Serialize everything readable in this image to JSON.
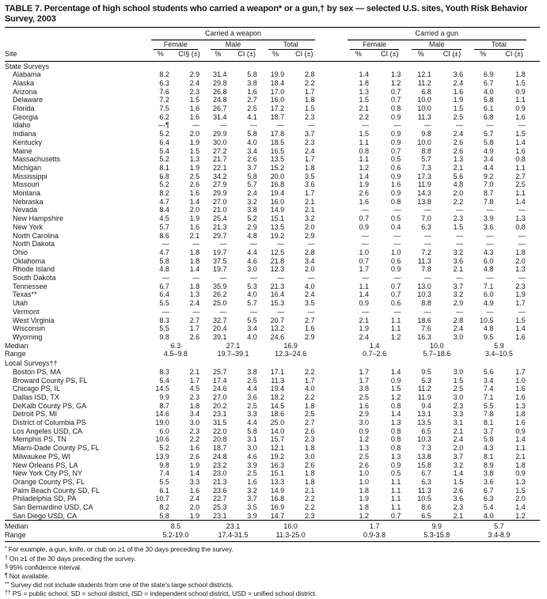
{
  "title": "TABLE 7. Percentage of high school students who carried a weapon* or a gun,† by sex — selected U.S. sites, Youth Risk Behavior Survey, 2003",
  "columns": {
    "site": "Site",
    "groups": [
      {
        "label": "Carried a weapon",
        "subs": [
          {
            "label": "Female",
            "pct": "%",
            "ci": "CI§ (±)"
          },
          {
            "label": "Male",
            "pct": "%",
            "ci": "CI (±)"
          },
          {
            "label": "Total",
            "pct": "%",
            "ci": "CI (±)"
          }
        ]
      },
      {
        "label": "Carried a gun",
        "subs": [
          {
            "label": "Female",
            "pct": "%",
            "ci": "CI (±)"
          },
          {
            "label": "Male",
            "pct": "%",
            "ci": "CI (±)"
          },
          {
            "label": "Total",
            "pct": "%",
            "ci": "CI (±)"
          }
        ]
      }
    ]
  },
  "sections": [
    {
      "label": "State Surveys",
      "divider_before_summary": false,
      "rows": [
        {
          "site": "Alabama",
          "v": [
            "8.2",
            "2.9",
            "31.4",
            "5.8",
            "19.9",
            "2.8",
            "1.4",
            "1.3",
            "12.1",
            "3.6",
            "6.9",
            "1.8"
          ]
        },
        {
          "site": "Alaska",
          "v": [
            "6.3",
            "2.4",
            "29.8",
            "3.8",
            "18.4",
            "2.2",
            "1.8",
            "1.2",
            "11.2",
            "2.4",
            "6.7",
            "1.5"
          ]
        },
        {
          "site": "Arizona",
          "v": [
            "7.6",
            "2.3",
            "26.8",
            "1.6",
            "17.0",
            "1.7",
            "1.3",
            "0.7",
            "6.8",
            "1.6",
            "4.0",
            "0.9"
          ]
        },
        {
          "site": "Delaware",
          "v": [
            "7.2",
            "1.5",
            "24.8",
            "2.7",
            "16.0",
            "1.8",
            "1.5",
            "0.7",
            "10.0",
            "1.9",
            "5.8",
            "1.1"
          ]
        },
        {
          "site": "Florida",
          "v": [
            "7.5",
            "1.6",
            "26.7",
            "2.5",
            "17.2",
            "1.5",
            "2.1",
            "0.8",
            "10.0",
            "1.5",
            "6.1",
            "0.9"
          ]
        },
        {
          "site": "Georgia",
          "v": [
            "6.2",
            "1.6",
            "31.4",
            "4.1",
            "18.7",
            "2.3",
            "2.2",
            "0.9",
            "11.3",
            "2.5",
            "6.8",
            "1.6"
          ]
        },
        {
          "site": "Idaho",
          "v": [
            "—¶",
            "—",
            "—",
            "—",
            "—",
            "—",
            "—",
            "—",
            "—",
            "—",
            "—",
            "—"
          ]
        },
        {
          "site": "Indiana",
          "v": [
            "5.2",
            "2.0",
            "29.9",
            "5.8",
            "17.8",
            "3.7",
            "1.5",
            "0.9",
            "9.8",
            "2.4",
            "5.7",
            "1.5"
          ]
        },
        {
          "site": "Kentucky",
          "v": [
            "6.4",
            "1.9",
            "30.0",
            "4.0",
            "18.5",
            "2.3",
            "1.1",
            "0.9",
            "10.0",
            "2.6",
            "5.8",
            "1.4"
          ]
        },
        {
          "site": "Maine",
          "v": [
            "5.4",
            "1.5",
            "27.2",
            "3.4",
            "16.5",
            "2.4",
            "0.8",
            "0.7",
            "8.8",
            "2.6",
            "4.9",
            "1.6"
          ]
        },
        {
          "site": "Massachusetts",
          "v": [
            "5.2",
            "1.3",
            "21.7",
            "2.6",
            "13.5",
            "1.7",
            "1.1",
            "0.5",
            "5.7",
            "1.3",
            "3.4",
            "0.8"
          ]
        },
        {
          "site": "Michigan",
          "v": [
            "8.1",
            "1.9",
            "22.1",
            "3.7",
            "15.2",
            "1.8",
            "1.2",
            "0.6",
            "7.3",
            "2.1",
            "4.4",
            "1.1"
          ]
        },
        {
          "site": "Mississippi",
          "v": [
            "6.8",
            "2.5",
            "34.2",
            "5.8",
            "20.0",
            "3.5",
            "1.4",
            "0.9",
            "17.3",
            "5.6",
            "9.2",
            "2.7"
          ]
        },
        {
          "site": "Missouri",
          "v": [
            "5.2",
            "2.6",
            "27.9",
            "5.7",
            "16.8",
            "3.6",
            "1.9",
            "1.6",
            "11.9",
            "4.8",
            "7.0",
            "2.5"
          ]
        },
        {
          "site": "Montana",
          "v": [
            "8.2",
            "1.6",
            "29.9",
            "2.4",
            "19.4",
            "1.7",
            "2.6",
            "0.9",
            "14.3",
            "2.0",
            "8.7",
            "1.1"
          ]
        },
        {
          "site": "Nebraska",
          "v": [
            "4.7",
            "1.4",
            "27.0",
            "3.2",
            "16.0",
            "2.1",
            "1.6",
            "0.8",
            "13.8",
            "2.2",
            "7.8",
            "1.4"
          ]
        },
        {
          "site": "Nevada",
          "v": [
            "8.4",
            "2.0",
            "21.0",
            "3.8",
            "14.9",
            "2.1",
            "—",
            "—",
            "—",
            "—",
            "—",
            "—"
          ]
        },
        {
          "site": "New Hampshire",
          "v": [
            "4.5",
            "1.9",
            "25.4",
            "5.2",
            "15.1",
            "3.2",
            "0.7",
            "0.5",
            "7.0",
            "2.3",
            "3.9",
            "1.3"
          ]
        },
        {
          "site": "New York",
          "v": [
            "5.7",
            "1.6",
            "21.3",
            "2.9",
            "13.5",
            "2.0",
            "0.9",
            "0.4",
            "6.3",
            "1.5",
            "3.6",
            "0.8"
          ]
        },
        {
          "site": "North Carolina",
          "v": [
            "8.6",
            "2.1",
            "29.7",
            "4.8",
            "19.2",
            "2.9",
            "—",
            "—",
            "—",
            "—",
            "—",
            "—"
          ]
        },
        {
          "site": "North Dakota",
          "v": [
            "—",
            "—",
            "—",
            "—",
            "—",
            "—",
            "—",
            "—",
            "—",
            "—",
            "—",
            "—"
          ]
        },
        {
          "site": "Ohio",
          "v": [
            "4.7",
            "1.8",
            "19.7",
            "4.4",
            "12.5",
            "2.8",
            "1.0",
            "1.0",
            "7.2",
            "3.2",
            "4.3",
            "1.8"
          ]
        },
        {
          "site": "Oklahoma",
          "v": [
            "5.8",
            "1.8",
            "37.5",
            "4.6",
            "21.8",
            "3.4",
            "0.7",
            "0.6",
            "11.3",
            "3.6",
            "6.0",
            "2.0"
          ]
        },
        {
          "site": "Rhode Island",
          "v": [
            "4.8",
            "1.4",
            "19.7",
            "3.0",
            "12.3",
            "2.0",
            "1.7",
            "0.9",
            "7.8",
            "2.1",
            "4.8",
            "1.3"
          ]
        },
        {
          "site": "South Dakota",
          "v": [
            "—",
            "—",
            "—",
            "—",
            "—",
            "—",
            "—",
            "—",
            "—",
            "—",
            "—",
            "—"
          ]
        },
        {
          "site": "Tennessee",
          "v": [
            "6.7",
            "1.8",
            "35.9",
            "5.3",
            "21.3",
            "4.0",
            "1.1",
            "0.7",
            "13.0",
            "3.7",
            "7.1",
            "2.3"
          ]
        },
        {
          "site": "Texas**",
          "v": [
            "6.4",
            "1.3",
            "26.2",
            "4.0",
            "16.4",
            "2.4",
            "1.4",
            "0.7",
            "10.3",
            "3.2",
            "6.0",
            "1.9"
          ]
        },
        {
          "site": "Utah",
          "v": [
            "5.5",
            "2.4",
            "25.0",
            "5.7",
            "15.3",
            "3.5",
            "0.9",
            "0.6",
            "8.8",
            "2.9",
            "4.9",
            "1.7"
          ]
        },
        {
          "site": "Vermont",
          "v": [
            "—",
            "—",
            "—",
            "—",
            "—",
            "—",
            "—",
            "—",
            "—",
            "—",
            "—",
            "—"
          ]
        },
        {
          "site": "West Virginia",
          "v": [
            "8.3",
            "2.7",
            "32.7",
            "5.5",
            "20.7",
            "2.7",
            "2.1",
            "1.1",
            "18.6",
            "2.8",
            "10.5",
            "1.5"
          ]
        },
        {
          "site": "Wisconsin",
          "v": [
            "5.5",
            "1.7",
            "20.4",
            "3.4",
            "13.2",
            "1.6",
            "1.9",
            "1.1",
            "7.6",
            "2.4",
            "4.8",
            "1.4"
          ]
        },
        {
          "site": "Wyoming",
          "v": [
            "9.8",
            "2.6",
            "39.1",
            "4.0",
            "24.6",
            "2.9",
            "2.4",
            "1.2",
            "16.3",
            "3.0",
            "9.5",
            "1.6"
          ]
        }
      ],
      "summary": [
        {
          "label": "Median",
          "v": [
            "6.3",
            "27.1",
            "16.9",
            "1.4",
            "10.0",
            "5.9"
          ]
        },
        {
          "label": "Range",
          "v": [
            "4.5–9.8",
            "19.7–39.1",
            "12.3–24.6",
            "0.7–2.6",
            "5.7–18.6",
            "3.4–10.5"
          ]
        }
      ]
    },
    {
      "label": "Local Surveys††",
      "divider_before_summary": true,
      "rows": [
        {
          "site": "Boston PS, MA",
          "v": [
            "8.3",
            "2.1",
            "25.7",
            "3.8",
            "17.1",
            "2.2",
            "1.7",
            "1.4",
            "9.5",
            "3.0",
            "5.6",
            "1.7"
          ]
        },
        {
          "site": "Broward County PS, FL",
          "v": [
            "5.4",
            "1.7",
            "17.4",
            "2.5",
            "11.3",
            "1.7",
            "1.7",
            "0.9",
            "5.3",
            "1.5",
            "3.4",
            "1.0"
          ]
        },
        {
          "site": "Chicago PS, IL",
          "v": [
            "14.5",
            "4.5",
            "24.6",
            "4.4",
            "19.4",
            "4.0",
            "3.8",
            "1.5",
            "11.2",
            "2.5",
            "7.4",
            "1.6"
          ]
        },
        {
          "site": "Dallas ISD, TX",
          "v": [
            "9.9",
            "2.3",
            "27.0",
            "3.6",
            "18.2",
            "2.2",
            "2.5",
            "1.2",
            "11.9",
            "3.0",
            "7.1",
            "1.6"
          ]
        },
        {
          "site": "DeKalb County PS, GA",
          "v": [
            "8.7",
            "1.8",
            "20.2",
            "2.5",
            "14.5",
            "1.8",
            "1.6",
            "0.8",
            "9.4",
            "2.3",
            "5.5",
            "1.3"
          ]
        },
        {
          "site": "Detroit PS, MI",
          "v": [
            "14.6",
            "3.4",
            "23.1",
            "3.3",
            "18.6",
            "2.5",
            "2.9",
            "1.4",
            "13.1",
            "3.3",
            "7.8",
            "1.8"
          ]
        },
        {
          "site": "District of Columbia PS",
          "v": [
            "19.0",
            "3.0",
            "31.5",
            "4.4",
            "25.0",
            "2.7",
            "3.0",
            "1.3",
            "13.5",
            "3.1",
            "8.1",
            "1.6"
          ]
        },
        {
          "site": "Los Angeles USD, CA",
          "v": [
            "6.0",
            "2.3",
            "22.0",
            "5.8",
            "14.0",
            "2.6",
            "0.9",
            "0.8",
            "6.5",
            "2.1",
            "3.7",
            "0.9"
          ]
        },
        {
          "site": "Memphis PS, TN",
          "v": [
            "10.6",
            "2.2",
            "20.8",
            "3.1",
            "15.7",
            "2.3",
            "1.2",
            "0.8",
            "10.3",
            "2.4",
            "5.8",
            "1.4"
          ]
        },
        {
          "site": "Miami-Dade County PS, FL",
          "v": [
            "5.2",
            "1.6",
            "18.7",
            "3.0",
            "12.1",
            "1.8",
            "1.3",
            "0.8",
            "7.3",
            "2.0",
            "4.3",
            "1.1"
          ]
        },
        {
          "site": "Milwaukee PS, WI",
          "v": [
            "13.9",
            "2.6",
            "24.8",
            "4.6",
            "19.2",
            "3.0",
            "2.5",
            "1.3",
            "13.8",
            "3.7",
            "8.1",
            "2.1"
          ]
        },
        {
          "site": "New Orleans PS, LA",
          "v": [
            "9.8",
            "1.9",
            "23.2",
            "3.9",
            "16.3",
            "2.6",
            "2.6",
            "0.9",
            "15.8",
            "3.2",
            "8.9",
            "1.8"
          ]
        },
        {
          "site": "New York City PS, NY",
          "v": [
            "7.4",
            "1.4",
            "23.0",
            "2.5",
            "15.1",
            "1.8",
            "1.0",
            "0.5",
            "6.7",
            "1.4",
            "3.8",
            "0.9"
          ]
        },
        {
          "site": "Orange County PS, FL",
          "v": [
            "5.5",
            "3.3",
            "21.3",
            "1.6",
            "13.3",
            "1.8",
            "1.0",
            "1.1",
            "6.3",
            "1.5",
            "3.6",
            "1.3"
          ]
        },
        {
          "site": "Palm Beach County SD, FL",
          "v": [
            "6.1",
            "1.6",
            "23.6",
            "3.2",
            "14.9",
            "2.1",
            "1.8",
            "1.1",
            "11.3",
            "2.6",
            "6.7",
            "1.5"
          ]
        },
        {
          "site": "Philadelphia SD, PA",
          "v": [
            "10.7",
            "2.4",
            "22.7",
            "3.7",
            "16.8",
            "2.2",
            "1.9",
            "1.1",
            "10.5",
            "3.6",
            "6.3",
            "2.0"
          ]
        },
        {
          "site": "San Bernardino USD, CA",
          "v": [
            "8.2",
            "2.0",
            "25.3",
            "3.5",
            "16.9",
            "2.2",
            "1.8",
            "1.1",
            "8.6",
            "2.3",
            "5.4",
            "1.4"
          ]
        },
        {
          "site": "San Diego USD, CA",
          "v": [
            "5.8",
            "1.9",
            "23.1",
            "3.9",
            "14.7",
            "2.3",
            "1.2",
            "0.7",
            "6.5",
            "2.1",
            "4.0",
            "1.2"
          ]
        }
      ],
      "summary": [
        {
          "label": "Median",
          "v": [
            "8.5",
            "23.1",
            "16.0",
            "1.7",
            "9.9",
            "5.7"
          ]
        },
        {
          "label": "Range",
          "v": [
            "5.2-19.0",
            "17.4-31.5",
            "11.3-25.0",
            "0.9-3.8",
            "5.3-15.8",
            "3.4-8.9"
          ]
        }
      ]
    }
  ],
  "footnotes": [
    {
      "sym": "*",
      "text": "For example, a gun, knife, or club on ≥1 of the 30 days preceding the survey."
    },
    {
      "sym": "†",
      "text": "On ≥1 of the 30 days preceding the survey."
    },
    {
      "sym": "§",
      "text": "95% confidence interval."
    },
    {
      "sym": "¶",
      "text": "Not available."
    },
    {
      "sym": "**",
      "text": "Survey did not include students from one of the state's large school districts."
    },
    {
      "sym": "††",
      "text": "PS = public school, SD = school district, ISD = independent school district, USD = unified school district."
    }
  ]
}
